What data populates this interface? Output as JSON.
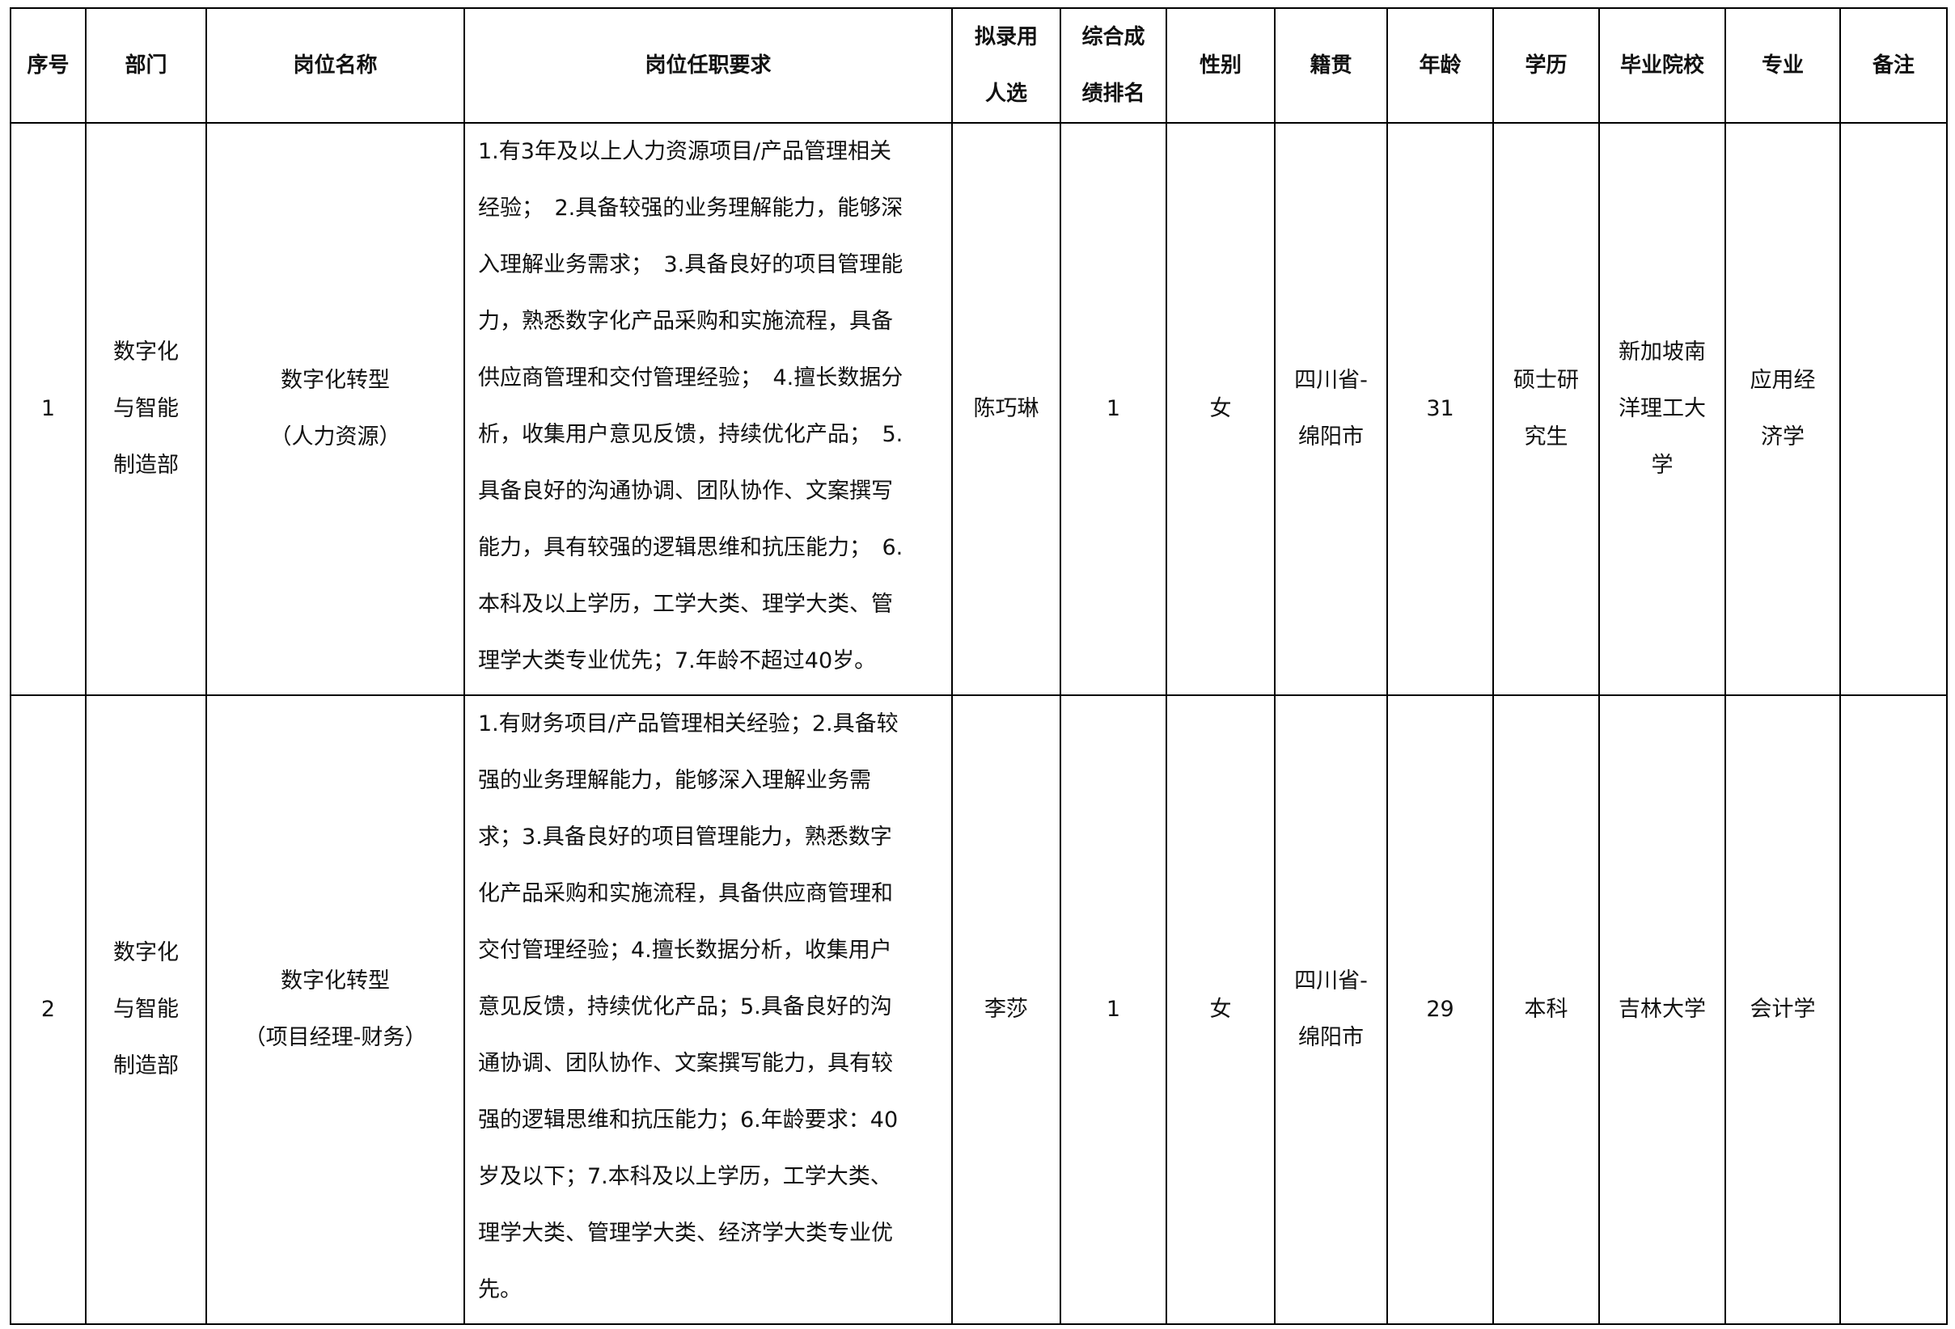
{
  "headers": [
    "序号",
    "部门",
    "岗位名称",
    "岗位任职要求",
    [
      "拟录用",
      "人选"
    ],
    [
      "综合成",
      "绩排名"
    ],
    "性别",
    "籍贯",
    "年龄",
    "学历",
    "毕业院校",
    "专业",
    "备注"
  ],
  "rows": [
    {
      "index": "1",
      "department": [
        "数字化",
        "与智能",
        "制造部"
      ],
      "position": [
        "数字化转型",
        "（人力资源）"
      ],
      "requirements": [
        "1.有3年及以上人力资源项目/产品管理相关",
        "经验；　2.具备较强的业务理解能力，能够深",
        "入理解业务需求；　3.具备良好的项目管理能",
        "力，熟悉数字化产品采购和实施流程，具备",
        "供应商管理和交付管理经验；　4.擅长数据分",
        "析，收集用户意见反馈，持续优化产品；　5.",
        "具备良好的沟通协调、团队协作、文案撰写",
        "能力，具有较强的逻辑思维和抗压能力；　6.",
        "本科及以上学历，工学大类、理学大类、管",
        "理学大类专业优先；7.年龄不超过40岁。"
      ],
      "candidate": "陈巧琳",
      "rank": "1",
      "gender": "女",
      "origin": [
        "四川省-",
        "绵阳市"
      ],
      "age": "31",
      "education": [
        "硕士研",
        "究生"
      ],
      "school": [
        "新加坡南",
        "洋理工大",
        "学"
      ],
      "major": [
        "应用经",
        "济学"
      ],
      "remark": ""
    },
    {
      "index": "2",
      "department": [
        "数字化",
        "与智能",
        "制造部"
      ],
      "position": [
        "数字化转型",
        "（项目经理-财务）"
      ],
      "requirements": [
        "1.有财务项目/产品管理相关经验；2.具备较",
        "强的业务理解能力，能够深入理解业务需",
        "求；3.具备良好的项目管理能力，熟悉数字",
        "化产品采购和实施流程，具备供应商管理和",
        "交付管理经验；4.擅长数据分析，收集用户",
        "意见反馈，持续优化产品；5.具备良好的沟",
        "通协调、团队协作、文案撰写能力，具有较",
        "强的逻辑思维和抗压能力；6.年龄要求：40",
        "岁及以下；7.本科及以上学历，工学大类、",
        "理学大类、管理学大类、经济学大类专业优",
        "先。"
      ],
      "candidate": "李莎",
      "rank": "1",
      "gender": "女",
      "origin": [
        "四川省-",
        "绵阳市"
      ],
      "age": "29",
      "education": [
        "本科"
      ],
      "school": [
        "吉林大学"
      ],
      "major": [
        "会计学"
      ],
      "remark": ""
    }
  ]
}
